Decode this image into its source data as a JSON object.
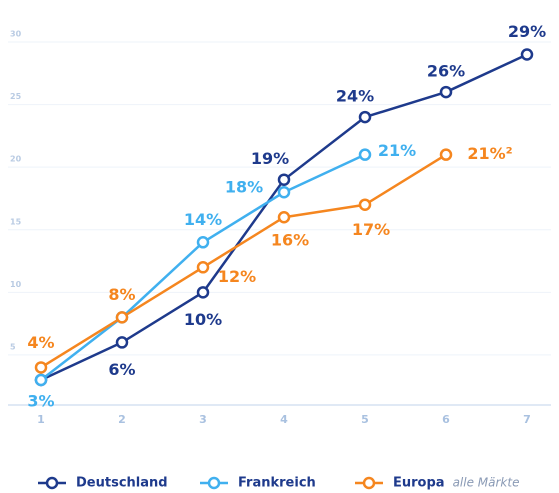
{
  "chart_data": {
    "type": "line",
    "x": [
      1,
      2,
      3,
      4,
      5,
      6,
      7
    ],
    "xlim": [
      1,
      7
    ],
    "xticks": [
      1,
      2,
      3,
      4,
      5,
      6,
      7
    ],
    "ylim": [
      1,
      30
    ],
    "yticks": [
      5,
      10,
      15,
      20,
      25,
      30
    ],
    "grid": true,
    "series": [
      {
        "name": "Deutschland",
        "color": "#1e3a8c",
        "values": [
          3,
          6,
          10,
          19,
          24,
          26,
          29
        ],
        "value_labels": [
          null,
          "6%",
          "10%",
          "19%",
          "24%",
          "26%",
          "29%"
        ]
      },
      {
        "name": "Frankreich",
        "color": "#40b0ef",
        "values": [
          3,
          8,
          14,
          18,
          21,
          null,
          null
        ],
        "value_labels": [
          "3%",
          null,
          "14%",
          "18%",
          "21%",
          null,
          null
        ]
      },
      {
        "name": "Europa",
        "color": "#f5861f",
        "values": [
          4,
          8,
          12,
          16,
          17,
          21,
          null
        ],
        "value_labels": [
          "4%",
          "8%",
          "12%",
          "16%",
          "17%",
          "21%²",
          null
        ]
      }
    ],
    "legend_note": "alle Märkte"
  }
}
